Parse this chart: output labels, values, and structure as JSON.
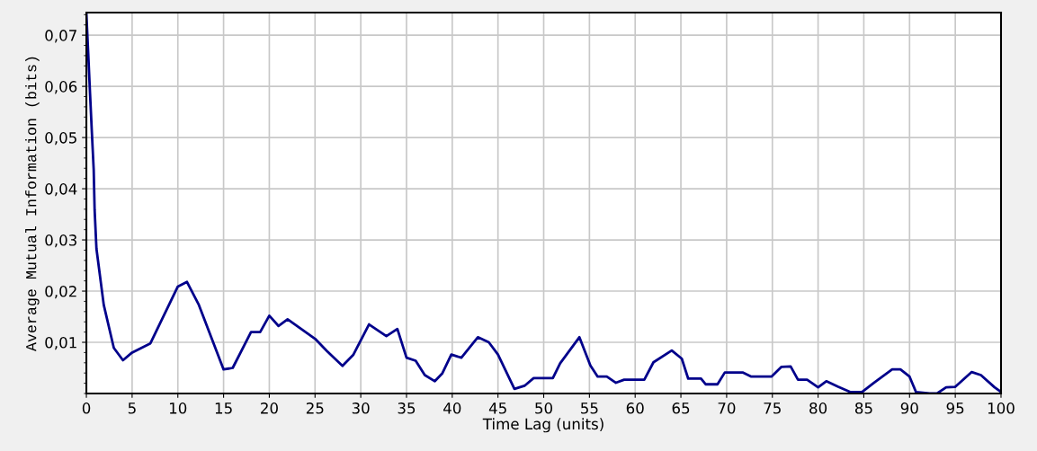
{
  "chart_data": {
    "type": "line",
    "xlabel": "Time Lag (units)",
    "ylabel": "Average Mutual Information (bits)",
    "xlim": [
      0,
      100
    ],
    "ylim": [
      0,
      0.0744
    ],
    "xticks": [
      0,
      5,
      10,
      15,
      20,
      25,
      30,
      35,
      40,
      45,
      50,
      55,
      60,
      65,
      70,
      75,
      80,
      85,
      90,
      95,
      100
    ],
    "yticks": [
      {
        "value": 0.01,
        "label": "0,01"
      },
      {
        "value": 0.02,
        "label": "0,02"
      },
      {
        "value": 0.03,
        "label": "0,03"
      },
      {
        "value": 0.04,
        "label": "0,04"
      },
      {
        "value": 0.05,
        "label": "0,05"
      },
      {
        "value": 0.06,
        "label": "0,06"
      },
      {
        "value": 0.07,
        "label": "0,07"
      }
    ],
    "grid": true,
    "marker": "none",
    "line_style": "solid",
    "series": [
      {
        "color": "#00008b",
        "x": [
          0,
          0.2,
          0.4,
          0.6,
          0.8,
          0.9,
          1.1,
          1.9,
          3,
          4,
          5,
          7,
          10,
          11,
          12.3,
          15,
          16,
          18,
          19,
          20,
          21,
          22,
          25,
          26.3,
          28,
          29.2,
          30.9,
          32.8,
          34,
          35,
          36,
          37,
          38.1,
          38.9,
          39.9,
          41,
          42.8,
          44,
          45,
          46.8,
          47.9,
          48.9,
          51,
          51.8,
          53.9,
          55.1,
          55.9,
          56.9,
          57.9,
          58.8,
          61,
          62,
          64,
          65.1,
          65.8,
          67.2,
          67.7,
          69,
          69.8,
          71.8,
          72.7,
          74.9,
          76,
          77,
          77.8,
          78.8,
          80,
          80.9,
          82.2,
          83.5,
          84.8,
          86.1,
          88.1,
          89,
          90,
          90.7,
          92.2,
          93,
          94,
          95,
          96.8,
          97.8,
          99.3,
          100
        ],
        "values": [
          0.0741,
          0.0665,
          0.0586,
          0.051,
          0.0437,
          0.0359,
          0.0283,
          0.0173,
          0.0089,
          0.0065,
          0.008,
          0.0098,
          0.0209,
          0.0218,
          0.0173,
          0.0047,
          0.005,
          0.012,
          0.012,
          0.0152,
          0.0132,
          0.0145,
          0.0107,
          0.0083,
          0.0054,
          0.0076,
          0.0135,
          0.0112,
          0.0126,
          0.007,
          0.0064,
          0.0036,
          0.0024,
          0.0039,
          0.0076,
          0.007,
          0.011,
          0.01,
          0.0076,
          0.0009,
          0.0015,
          0.003,
          0.003,
          0.0059,
          0.011,
          0.0055,
          0.0033,
          0.0033,
          0.0021,
          0.0027,
          0.0027,
          0.0061,
          0.0084,
          0.0068,
          0.0029,
          0.0029,
          0.0018,
          0.0018,
          0.0041,
          0.0041,
          0.0033,
          0.0033,
          0.0052,
          0.0053,
          0.0027,
          0.0027,
          0.0012,
          0.0024,
          0.0013,
          0.0003,
          0.0003,
          0.0021,
          0.0047,
          0.0047,
          0.0033,
          0.0003,
          0,
          0,
          0.0012,
          0.0013,
          0.0042,
          0.0036,
          0.0012,
          0.0003
        ]
      }
    ]
  }
}
